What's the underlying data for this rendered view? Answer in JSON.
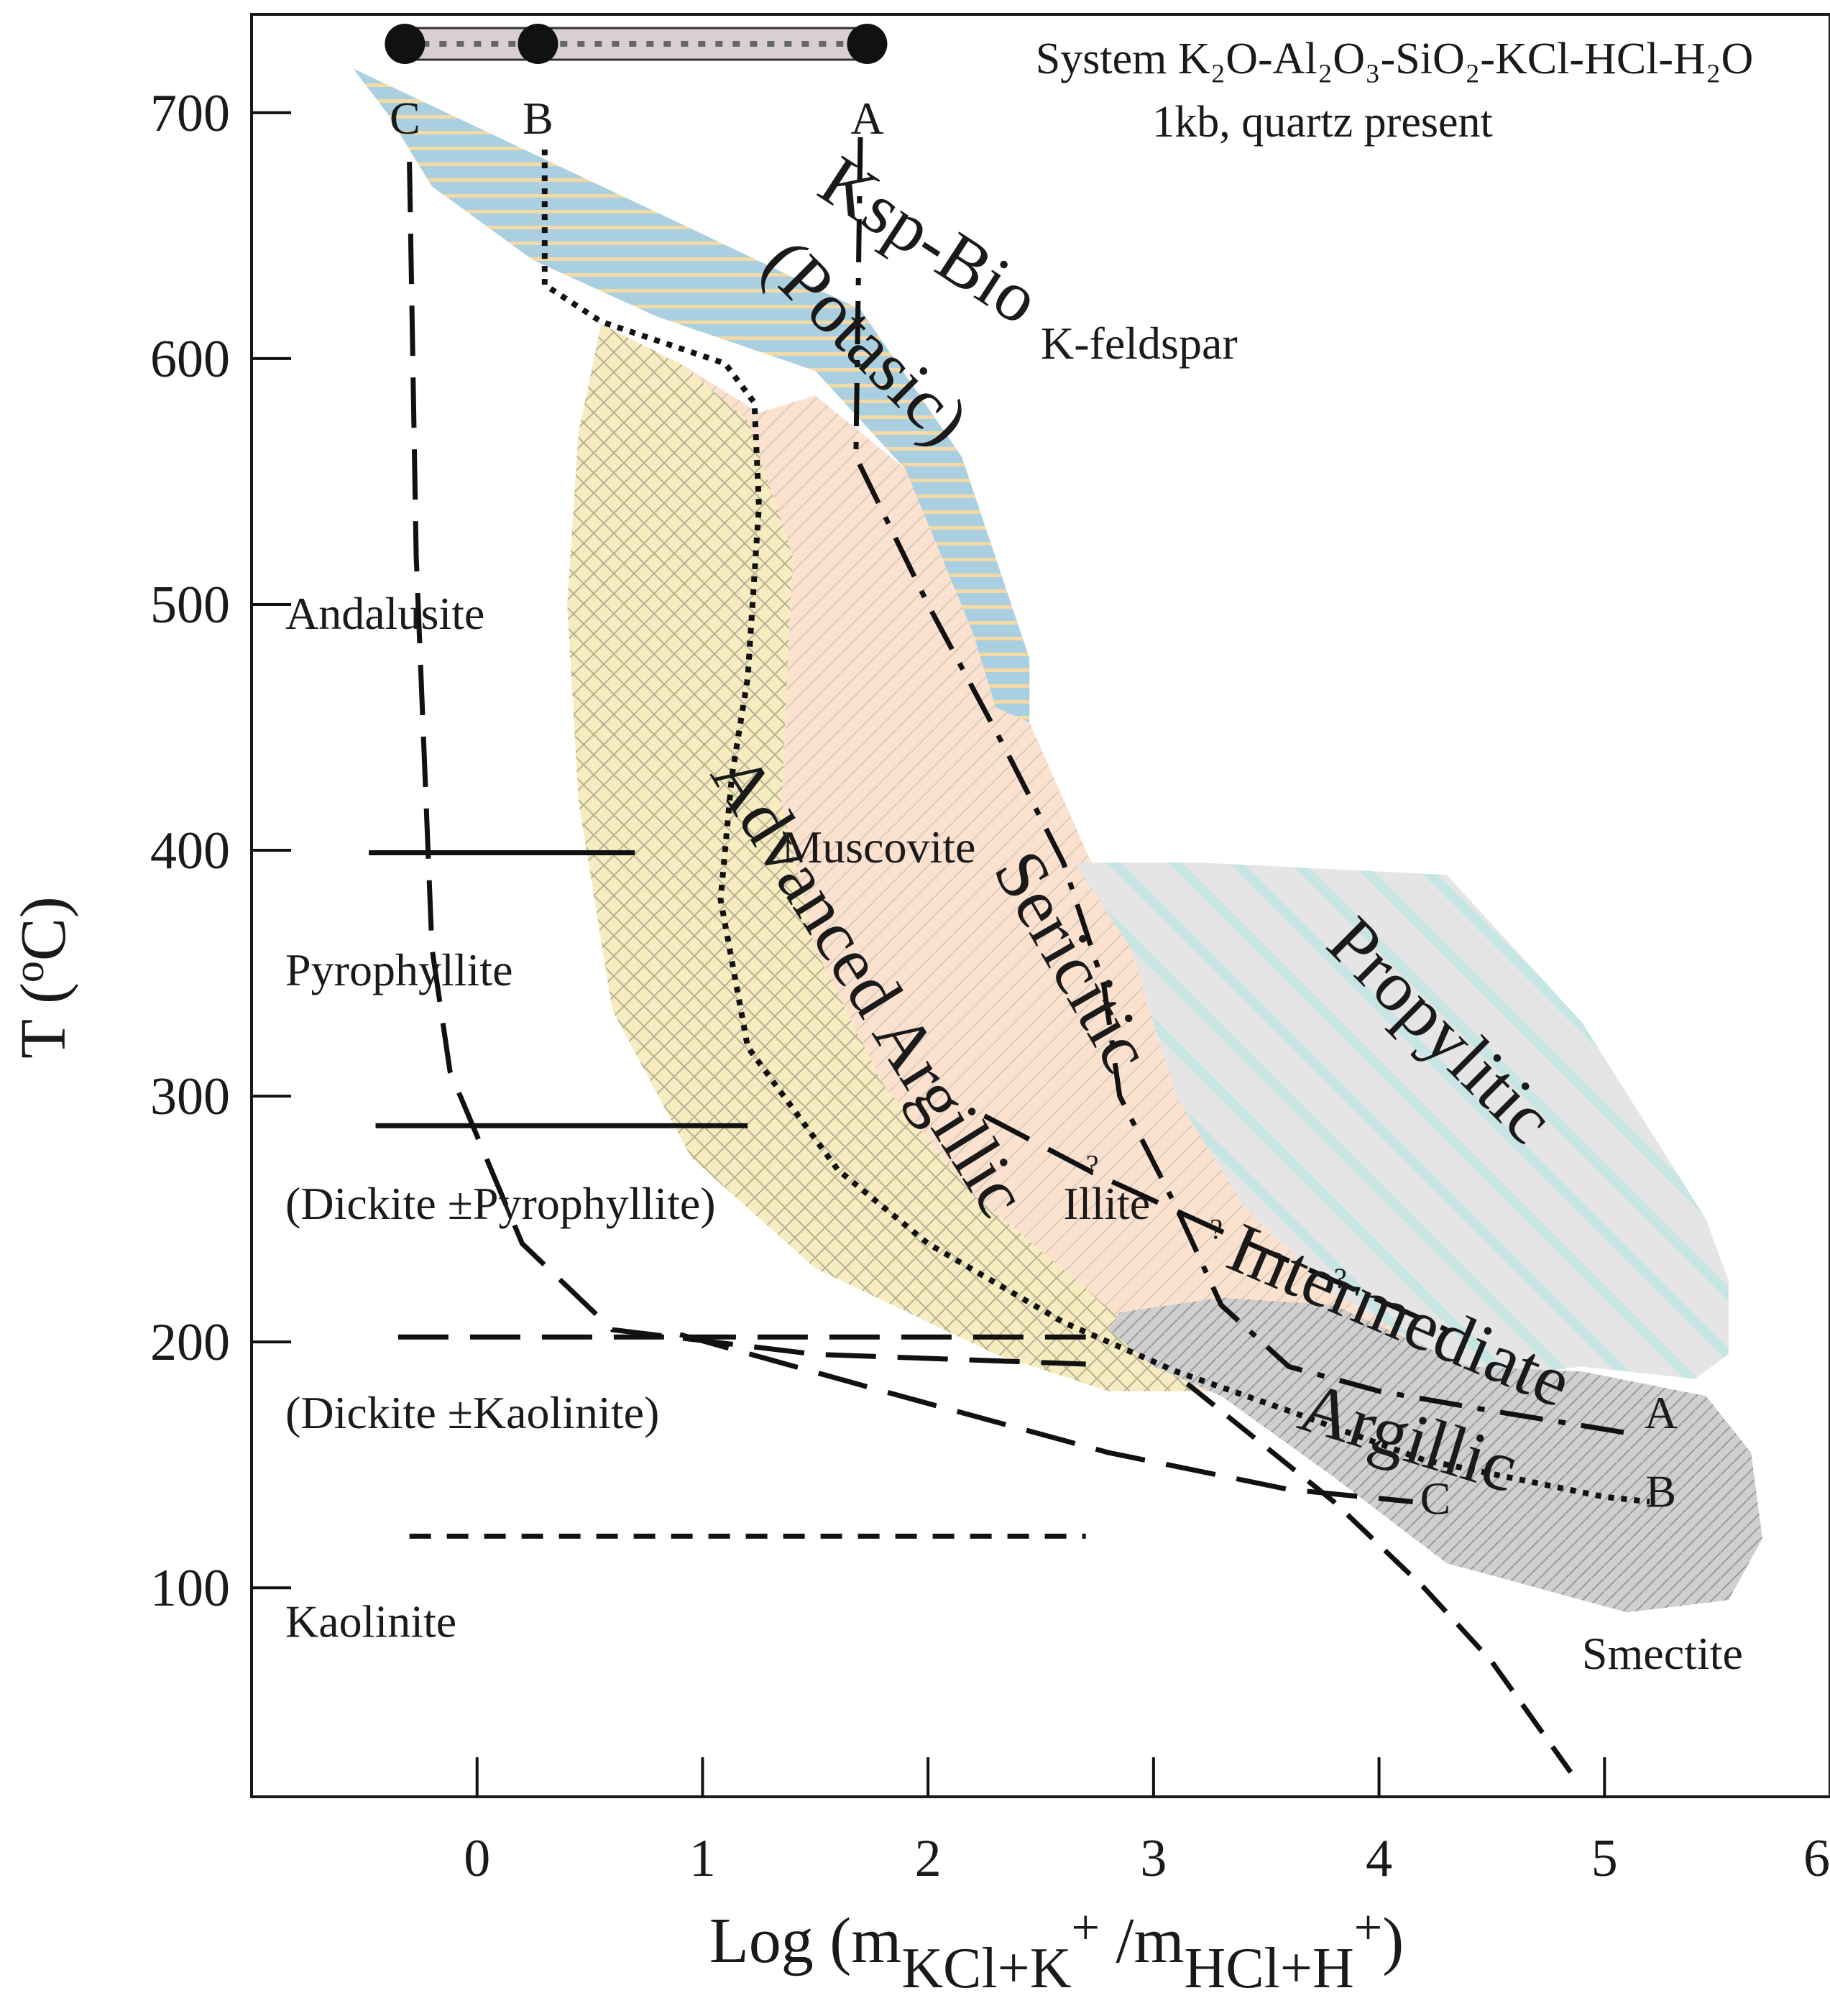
{
  "chart_data": {
    "type": "phase-diagram",
    "title": "System K₂O-Al₂O₃-SiO₂-KCl-HCl-H₂O",
    "subtitle": "1kb, quartz present",
    "xlabel": {
      "main": "Log (m",
      "sub1": "KCl+K",
      "sup1": "+",
      "mid": " /m",
      "sub2": "HCl+H",
      "sup2": "+",
      "end": ")"
    },
    "ylabel": {
      "main": "T (",
      "sup": "o",
      "end": "C)"
    },
    "xlim": [
      -1,
      6
    ],
    "ylim": [
      15,
      740
    ],
    "xticks": [
      {
        "value": 0,
        "label": "0"
      },
      {
        "value": 1,
        "label": "1"
      },
      {
        "value": 2,
        "label": "2"
      },
      {
        "value": 3,
        "label": "3"
      },
      {
        "value": 4,
        "label": "4"
      },
      {
        "value": 5,
        "label": "5"
      },
      {
        "value": 6,
        "label": "6"
      }
    ],
    "yticks": [
      {
        "value": 100,
        "label": "100"
      },
      {
        "value": 200,
        "label": "200"
      },
      {
        "value": 300,
        "label": "300"
      },
      {
        "value": 400,
        "label": "400"
      },
      {
        "value": 500,
        "label": "500"
      },
      {
        "value": 600,
        "label": "600"
      },
      {
        "value": 700,
        "label": "700"
      }
    ],
    "mineral_fields": [
      {
        "label": "K-feldspar",
        "x": 2.5,
        "y": 600
      },
      {
        "label": "Andalusite",
        "x": -0.85,
        "y": 490
      },
      {
        "label": "Muscovite",
        "x": 1.35,
        "y": 395
      },
      {
        "label": "Pyrophyllite",
        "x": -0.85,
        "y": 345
      },
      {
        "label": "(Dickite ±Pyrophyllite)",
        "x": -0.85,
        "y": 250
      },
      {
        "label": "Illite",
        "x": 2.6,
        "y": 250
      },
      {
        "label": "(Dickite ±Kaolinite)",
        "x": -0.85,
        "y": 165
      },
      {
        "label": "Kaolinite",
        "x": -0.85,
        "y": 80
      },
      {
        "label": "Smectite",
        "x": 4.9,
        "y": 67
      }
    ],
    "alteration_zones": [
      {
        "name": "Ksp-Bio",
        "color": "#a9cfe0",
        "stripe": "#f3d9a5",
        "polygon": [
          [
            -0.55,
            718
          ],
          [
            0.9,
            655
          ],
          [
            1.7,
            620
          ],
          [
            2.15,
            560
          ],
          [
            2.45,
            478
          ],
          [
            2.45,
            452
          ],
          [
            2.3,
            458
          ],
          [
            2.2,
            488
          ],
          [
            1.9,
            555
          ],
          [
            1.5,
            595
          ],
          [
            0.8,
            617
          ],
          [
            0.25,
            640
          ],
          [
            -0.2,
            670
          ],
          [
            -0.4,
            700
          ]
        ]
      },
      {
        "name": "Advanced Argillic",
        "color": "#f6ecc0",
        "stripe": "#bfb7a0",
        "polygon": [
          [
            0.55,
            614
          ],
          [
            0.9,
            598
          ],
          [
            1.2,
            575
          ],
          [
            1.4,
            520
          ],
          [
            1.35,
            420
          ],
          [
            1.5,
            360
          ],
          [
            1.8,
            305
          ],
          [
            2.2,
            260
          ],
          [
            2.7,
            222
          ],
          [
            3.2,
            180
          ],
          [
            2.8,
            180
          ],
          [
            2.3,
            195
          ],
          [
            1.5,
            230
          ],
          [
            0.95,
            275
          ],
          [
            0.6,
            335
          ],
          [
            0.45,
            420
          ],
          [
            0.4,
            500
          ],
          [
            0.45,
            570
          ]
        ]
      },
      {
        "name": "Sericitic",
        "color": "#fde1cf",
        "stripe": "#d6cdbc",
        "polygon": [
          [
            0.9,
            598
          ],
          [
            1.25,
            578
          ],
          [
            1.5,
            585
          ],
          [
            1.9,
            555
          ],
          [
            2.2,
            488
          ],
          [
            2.3,
            458
          ],
          [
            2.45,
            452
          ],
          [
            2.7,
            400
          ],
          [
            2.9,
            360
          ],
          [
            3.1,
            300
          ],
          [
            3.4,
            255
          ],
          [
            3.8,
            220
          ],
          [
            4.2,
            198
          ],
          [
            4.45,
            185
          ],
          [
            4.0,
            180
          ],
          [
            3.2,
            180
          ],
          [
            2.7,
            222
          ],
          [
            2.2,
            260
          ],
          [
            1.8,
            305
          ],
          [
            1.5,
            360
          ],
          [
            1.35,
            420
          ],
          [
            1.4,
            520
          ],
          [
            1.2,
            575
          ]
        ]
      },
      {
        "name": "Propylitic",
        "color": "#e5e5e5",
        "stripe": "#bfe3e0",
        "polygon": [
          [
            2.65,
            395
          ],
          [
            3.2,
            395
          ],
          [
            4.3,
            390
          ],
          [
            4.9,
            330
          ],
          [
            5.45,
            250
          ],
          [
            5.55,
            225
          ],
          [
            5.55,
            195
          ],
          [
            5.4,
            185
          ],
          [
            4.9,
            190
          ],
          [
            4.45,
            185
          ],
          [
            4.2,
            198
          ],
          [
            3.8,
            220
          ],
          [
            3.4,
            255
          ],
          [
            3.1,
            300
          ],
          [
            2.9,
            360
          ]
        ]
      },
      {
        "name": "Intermediate Argillic",
        "color": "#cfcfcf",
        "stripe": "#9a9a9a",
        "polygon": [
          [
            2.85,
            212
          ],
          [
            3.3,
            218
          ],
          [
            3.8,
            215
          ],
          [
            4.4,
            190
          ],
          [
            4.9,
            188
          ],
          [
            5.45,
            178
          ],
          [
            5.65,
            155
          ],
          [
            5.7,
            120
          ],
          [
            5.55,
            95
          ],
          [
            5.1,
            90
          ],
          [
            4.3,
            110
          ],
          [
            3.8,
            145
          ],
          [
            3.3,
            178
          ],
          [
            3.0,
            190
          ],
          [
            2.8,
            205
          ]
        ]
      }
    ],
    "zone_labels": [
      {
        "text": "Ksp-Bio",
        "x": 1.95,
        "y": 640,
        "rotate": 33
      },
      {
        "text": "(Potasic)",
        "x": 1.65,
        "y": 600,
        "rotate": 45
      },
      {
        "text": "Advanced Argillic",
        "x": 1.65,
        "y": 340,
        "rotate": 58
      },
      {
        "text": "Sericitic",
        "x": 2.55,
        "y": 350,
        "rotate": 60
      },
      {
        "text": "Propylitic",
        "x": 4.2,
        "y": 320,
        "rotate": 45
      },
      {
        "text": "Intermediate",
        "x": 4.05,
        "y": 202,
        "rotate": 23
      },
      {
        "text": "Argillic",
        "x": 4.1,
        "y": 152,
        "rotate": 17
      }
    ],
    "boundaries": [
      {
        "name": "andalusite-pyrophyllite",
        "style": "solid",
        "points": [
          [
            -0.48,
            399
          ],
          [
            0.7,
            399
          ]
        ]
      },
      {
        "name": "pyrophyllite-dickite",
        "style": "solid",
        "points": [
          [
            -0.45,
            288
          ],
          [
            1.2,
            288
          ]
        ]
      },
      {
        "name": "dickite-transition",
        "style": "dashed-long",
        "points": [
          [
            -0.35,
            202
          ],
          [
            2.7,
            202
          ]
        ]
      },
      {
        "name": "kaolinite-limit",
        "style": "dashed-short",
        "points": [
          [
            -0.3,
            121
          ],
          [
            2.7,
            121
          ]
        ]
      },
      {
        "name": "pyrophyllite-kaolinite-curve",
        "style": "dashed-long",
        "points": [
          [
            -0.3,
            680
          ],
          [
            -0.27,
            520
          ],
          [
            -0.2,
            360
          ],
          [
            -0.12,
            310
          ],
          [
            0.2,
            240
          ],
          [
            0.6,
            205
          ],
          [
            1.5,
            195
          ],
          [
            2.7,
            191
          ]
        ]
      },
      {
        "name": "smectite-boundary",
        "style": "dashed-medium",
        "points": [
          [
            3.15,
            183
          ],
          [
            3.8,
            135
          ],
          [
            4.2,
            100
          ],
          [
            4.5,
            70
          ],
          [
            4.85,
            25
          ]
        ]
      },
      {
        "name": "C-boundary",
        "style": "dashed-long",
        "points": [
          [
            0.9,
            203
          ],
          [
            1.8,
            180
          ],
          [
            2.8,
            155
          ],
          [
            3.6,
            140
          ],
          [
            4.15,
            135
          ]
        ]
      },
      {
        "name": "A-boundary",
        "style": "dash-dot",
        "points": [
          [
            1.7,
            690
          ],
          [
            1.68,
            560
          ],
          [
            2.0,
            500
          ],
          [
            2.35,
            440
          ],
          [
            2.6,
            395
          ],
          [
            2.78,
            345
          ],
          [
            2.85,
            300
          ],
          [
            3.1,
            255
          ],
          [
            3.3,
            215
          ],
          [
            3.6,
            190
          ],
          [
            4.0,
            180
          ],
          [
            4.5,
            172
          ],
          [
            5.1,
            163
          ]
        ]
      },
      {
        "name": "B-boundary",
        "style": "dotted",
        "points": [
          [
            0.3,
            685
          ],
          [
            0.3,
            630
          ],
          [
            0.55,
            615
          ],
          [
            1.1,
            598
          ],
          [
            1.23,
            582
          ],
          [
            1.25,
            540
          ],
          [
            1.2,
            470
          ],
          [
            1.13,
            430
          ],
          [
            1.08,
            380
          ],
          [
            1.2,
            320
          ],
          [
            1.6,
            270
          ],
          [
            2.0,
            240
          ],
          [
            2.6,
            208
          ],
          [
            3.1,
            188
          ],
          [
            3.6,
            172
          ],
          [
            4.2,
            152
          ],
          [
            5.0,
            137
          ],
          [
            5.2,
            135
          ]
        ]
      },
      {
        "name": "sericite-illite-question",
        "style": "dashed-long",
        "points": [
          [
            2.25,
            292
          ],
          [
            2.75,
            268
          ],
          [
            3.3,
            245
          ],
          [
            3.8,
            225
          ],
          [
            4.3,
            205
          ]
        ]
      }
    ],
    "question_marks": [
      {
        "text": "?",
        "x": 2.7,
        "y": 268
      },
      {
        "text": "?",
        "x": 3.25,
        "y": 242
      },
      {
        "text": "?",
        "x": 3.8,
        "y": 222
      }
    ],
    "path_labels": [
      {
        "text": "A",
        "x": 5.25,
        "y": 165
      },
      {
        "text": "B",
        "x": 5.25,
        "y": 133
      },
      {
        "text": "C",
        "x": 4.25,
        "y": 130
      }
    ],
    "legend_bar": {
      "xs": [
        -0.32,
        0.27,
        1.73
      ],
      "y": 728,
      "labels": [
        "C",
        "B",
        "A"
      ]
    }
  }
}
